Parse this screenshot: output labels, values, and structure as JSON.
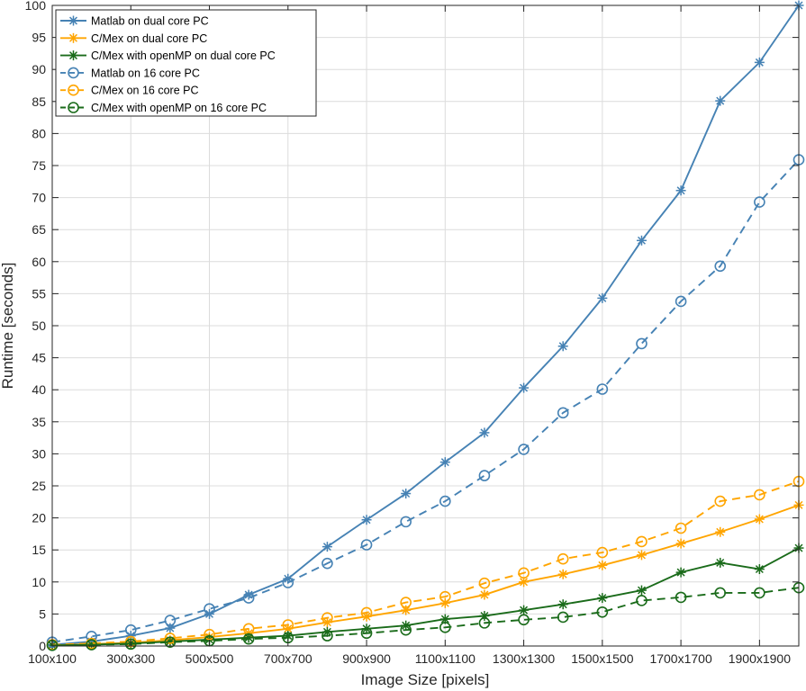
{
  "chart_data": {
    "type": "line",
    "title": "",
    "xlabel": "Image Size [pixels]",
    "ylabel": "Runtime [seconds]",
    "xlim": [
      100,
      2000
    ],
    "ylim": [
      0,
      100
    ],
    "grid": true,
    "legend_position": "top-left",
    "x": [
      100,
      200,
      300,
      400,
      500,
      600,
      700,
      800,
      900,
      1000,
      1100,
      1200,
      1300,
      1400,
      1500,
      1600,
      1700,
      1800,
      1900,
      2000
    ],
    "x_tick_values": [
      100,
      300,
      500,
      700,
      900,
      1100,
      1300,
      1500,
      1700,
      1900
    ],
    "x_tick_labels": [
      "100x100",
      "300x300",
      "500x500",
      "700x700",
      "900x900",
      "1100x1100",
      "1300x1300",
      "1500x1500",
      "1700x1700",
      "1900x1900"
    ],
    "y_tick_values": [
      0,
      5,
      10,
      15,
      20,
      25,
      30,
      35,
      40,
      45,
      50,
      55,
      60,
      65,
      70,
      75,
      80,
      85,
      90,
      95,
      100
    ],
    "y_tick_labels": [
      "0",
      "5",
      "10",
      "15",
      "20",
      "25",
      "30",
      "35",
      "40",
      "45",
      "50",
      "55",
      "60",
      "65",
      "70",
      "75",
      "80",
      "85",
      "90",
      "95",
      "100"
    ],
    "series": [
      {
        "name": "Matlab on dual core PC",
        "color": "#4682b4",
        "line_style": "solid",
        "marker": "star",
        "values": [
          0.2,
          0.7,
          1.6,
          2.8,
          5.0,
          8.0,
          10.5,
          15.5,
          19.7,
          23.8,
          28.7,
          33.3,
          40.3,
          46.8,
          54.3,
          63.3,
          71.1,
          85.1,
          91.1,
          100.0
        ]
      },
      {
        "name": "C/Mex on dual core PC",
        "color": "#ffa500",
        "line_style": "solid",
        "marker": "star",
        "values": [
          0.1,
          0.3,
          0.5,
          0.9,
          1.4,
          2.0,
          2.7,
          3.7,
          4.6,
          5.6,
          6.7,
          8.0,
          10.0,
          11.2,
          12.6,
          14.2,
          16.0,
          17.8,
          19.8,
          22.0
        ]
      },
      {
        "name": "C/Mex with openMP on dual core PC",
        "color": "#1a6b1a",
        "line_style": "solid",
        "marker": "star",
        "values": [
          0.1,
          0.2,
          0.4,
          0.7,
          1.0,
          1.3,
          1.6,
          2.2,
          2.7,
          3.2,
          4.2,
          4.7,
          5.6,
          6.5,
          7.5,
          8.7,
          11.5,
          13.0,
          12.0,
          15.3
        ]
      },
      {
        "name": "Matlab on 16 core PC",
        "color": "#4682b4",
        "line_style": "dashed",
        "marker": "circle",
        "values": [
          0.6,
          1.5,
          2.5,
          4.0,
          5.8,
          7.5,
          9.9,
          12.9,
          15.8,
          19.4,
          22.6,
          26.6,
          30.7,
          36.4,
          40.1,
          47.2,
          53.8,
          59.3,
          69.3,
          75.9
        ]
      },
      {
        "name": "C/Mex on 16 core PC",
        "color": "#ffa500",
        "line_style": "dashed",
        "marker": "circle",
        "values": [
          0.2,
          0.4,
          0.7,
          1.2,
          1.8,
          2.7,
          3.3,
          4.4,
          5.2,
          6.8,
          7.7,
          9.8,
          11.4,
          13.6,
          14.6,
          16.3,
          18.4,
          22.6,
          23.6,
          25.7
        ]
      },
      {
        "name": "C/Mex with openMP on 16 core PC",
        "color": "#1a6b1a",
        "line_style": "dashed",
        "marker": "circle",
        "values": [
          0.1,
          0.2,
          0.3,
          0.6,
          0.8,
          1.1,
          1.3,
          1.6,
          2.0,
          2.5,
          2.9,
          3.6,
          4.1,
          4.5,
          5.3,
          7.1,
          7.6,
          8.3,
          8.3,
          9.1
        ]
      }
    ]
  }
}
